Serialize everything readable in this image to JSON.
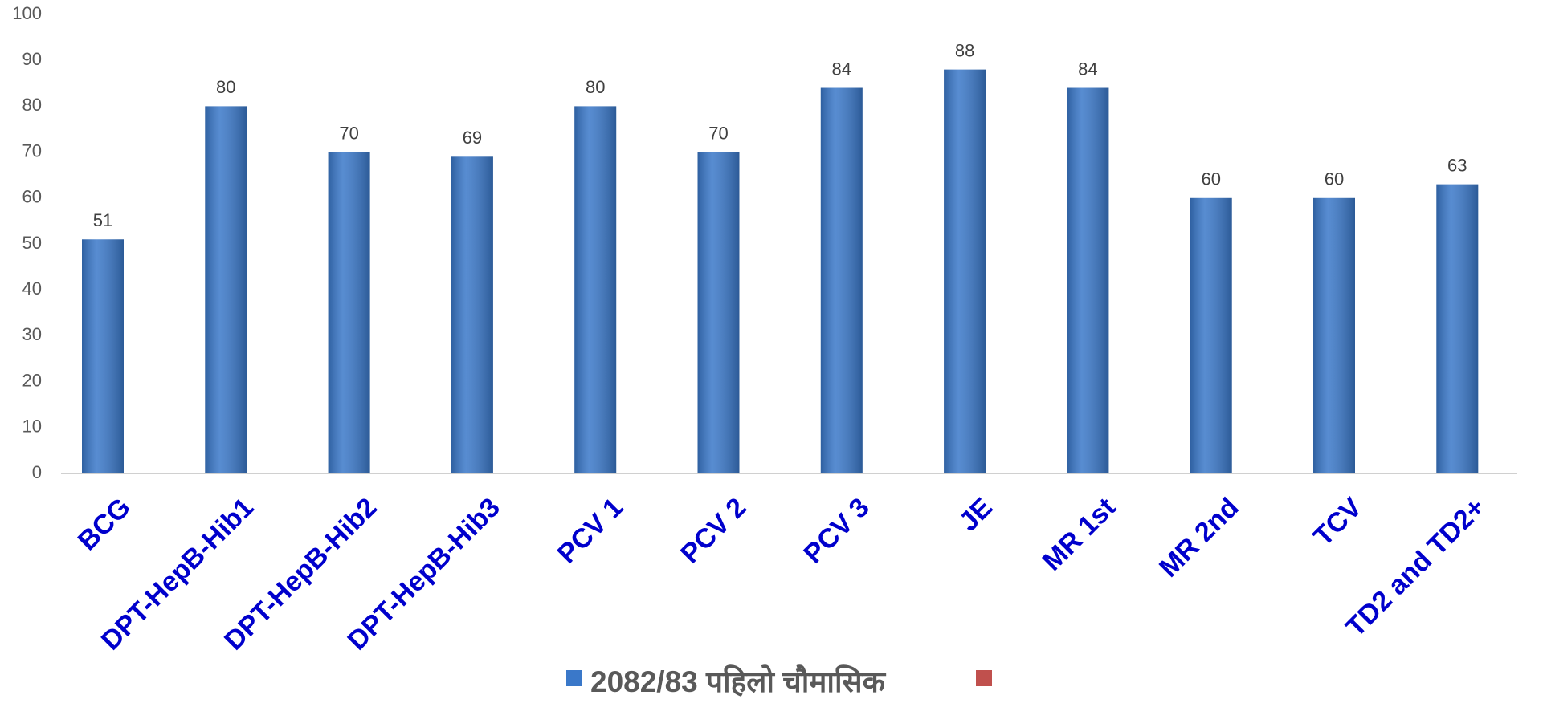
{
  "chart_data": {
    "type": "bar",
    "categories": [
      "BCG",
      "DPT-HepB-Hib1",
      "DPT-HepB-Hib2",
      "DPT-HepB-Hib3",
      "PCV 1",
      "PCV 2",
      "PCV 3",
      "JE",
      "MR 1st",
      "MR 2nd",
      "TCV",
      "TD2 and TD2+"
    ],
    "series": [
      {
        "name": "2082/83 पहिलो चौमासिक",
        "color": "#3a78c9",
        "values": [
          51,
          80,
          70,
          69,
          80,
          70,
          84,
          88,
          84,
          60,
          60,
          63
        ]
      }
    ],
    "ylim": [
      0,
      100
    ],
    "yticks": [
      0,
      10,
      20,
      30,
      40,
      50,
      60,
      70,
      80,
      90,
      100
    ],
    "grid": false,
    "legend": "bottom"
  }
}
